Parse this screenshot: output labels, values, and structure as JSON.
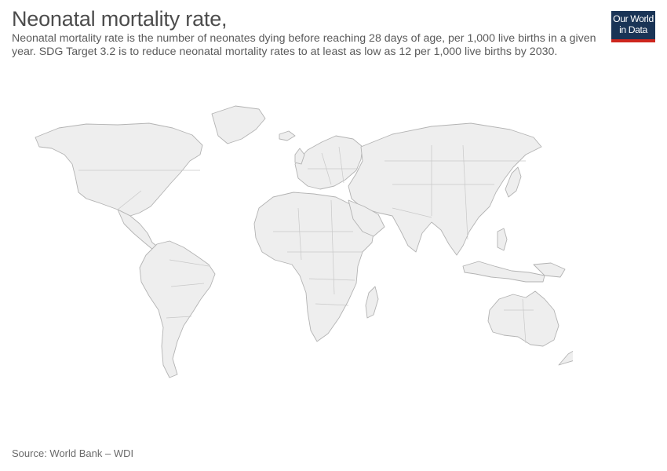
{
  "header": {
    "title": "Neonatal mortality rate,",
    "subtitle": "Neonatal mortality rate is the number of neonates dying before reaching 28 days of age, per 1,000 live births in a given year. SDG Target 3.2 is to reduce neonatal mortality rates to at least as low as 12 per 1,000 live births by 2030."
  },
  "logo": {
    "line1": "Our World",
    "line2": "in Data",
    "background": "#1a3456",
    "accent": "#ce261e"
  },
  "map": {
    "land_fill": "#eeeeee",
    "border_color": "#b3b3b3"
  },
  "footer": {
    "source": "Source: World Bank – WDI"
  }
}
